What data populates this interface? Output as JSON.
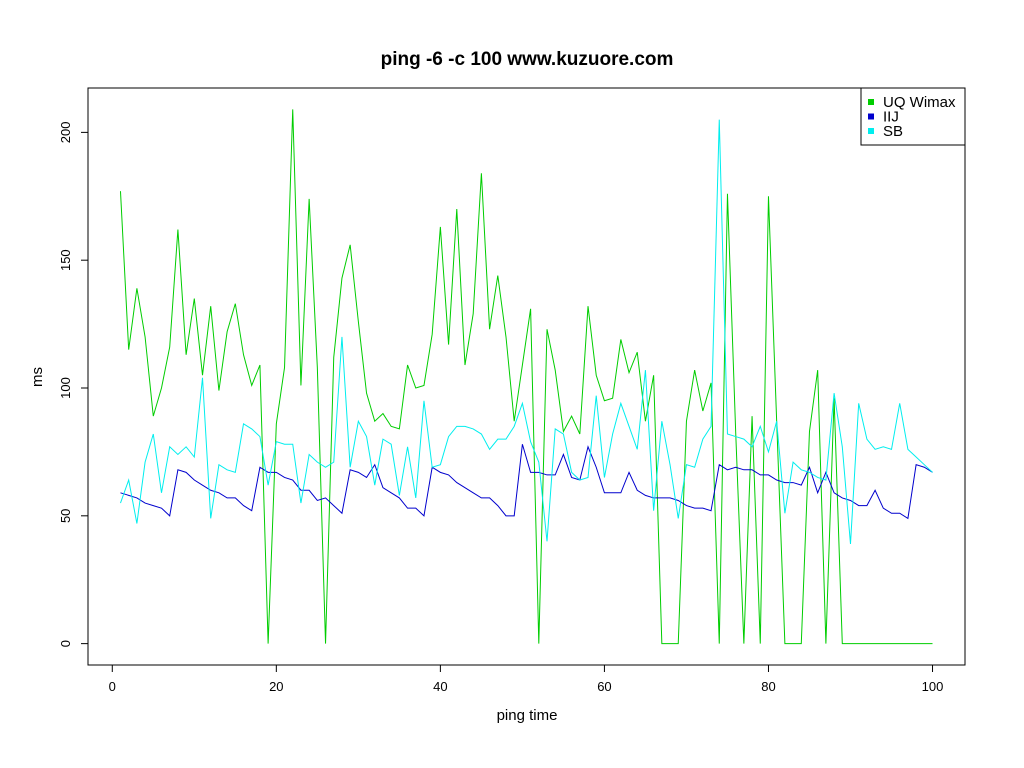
{
  "chart_data": {
    "type": "line",
    "title": "ping -6 -c 100 www.kuzuore.com",
    "xlabel": "ping time",
    "ylabel": "ms",
    "xlim": [
      -2.96,
      103.96
    ],
    "ylim": [
      -8.36,
      217.36
    ],
    "x_ticks": [
      0,
      20,
      40,
      60,
      80,
      100
    ],
    "y_ticks": [
      0,
      50,
      100,
      150,
      200
    ],
    "legend_position": "top-right",
    "grid": false,
    "x": [
      1,
      2,
      3,
      4,
      5,
      6,
      7,
      8,
      9,
      10,
      11,
      12,
      13,
      14,
      15,
      16,
      17,
      18,
      19,
      20,
      21,
      22,
      23,
      24,
      25,
      26,
      27,
      28,
      29,
      30,
      31,
      32,
      33,
      34,
      35,
      36,
      37,
      38,
      39,
      40,
      41,
      42,
      43,
      44,
      45,
      46,
      47,
      48,
      49,
      50,
      51,
      52,
      53,
      54,
      55,
      56,
      57,
      58,
      59,
      60,
      61,
      62,
      63,
      64,
      65,
      66,
      67,
      68,
      69,
      70,
      71,
      72,
      73,
      74,
      75,
      76,
      77,
      78,
      79,
      80,
      81,
      82,
      83,
      84,
      85,
      86,
      87,
      88,
      89,
      90,
      91,
      92,
      93,
      94,
      95,
      96,
      97,
      98,
      99,
      100
    ],
    "series": [
      {
        "name": "UQ Wimax",
        "color": "#00cd00",
        "values": [
          177,
          115,
          139,
          120,
          89,
          100,
          116,
          162,
          113,
          135,
          105,
          132,
          99,
          122,
          133,
          113,
          101,
          109,
          0,
          86,
          108,
          209,
          101,
          174,
          108,
          0,
          112,
          143,
          156,
          126,
          98,
          87,
          90,
          85,
          84,
          109,
          100,
          101,
          121,
          163,
          117,
          170,
          109,
          129,
          184,
          123,
          144,
          120,
          87,
          109,
          131,
          0,
          123,
          107,
          83,
          89,
          82,
          132,
          105,
          95,
          96,
          119,
          106,
          114,
          87,
          105,
          0,
          0,
          0,
          87,
          107,
          91,
          102,
          0,
          176,
          83,
          0,
          89,
          0,
          175,
          87,
          0,
          0,
          0,
          83,
          107,
          0,
          96,
          0,
          0,
          0,
          0,
          0,
          0,
          0,
          0,
          0,
          0,
          0,
          0
        ]
      },
      {
        "name": "IIJ",
        "color": "#0000cd",
        "values": [
          59,
          58,
          57,
          55,
          54,
          53,
          50,
          68,
          67,
          64,
          62,
          60,
          59,
          57,
          57,
          54,
          52,
          69,
          67,
          67,
          65,
          64,
          60,
          60,
          56,
          57,
          54,
          51,
          68,
          67,
          65,
          70,
          61,
          59,
          57,
          53,
          53,
          50,
          69,
          67,
          66,
          63,
          61,
          59,
          57,
          57,
          54,
          50,
          50,
          78,
          67,
          67,
          66,
          66,
          74,
          65,
          64,
          77,
          69,
          59,
          59,
          59,
          67,
          60,
          58,
          57,
          57,
          57,
          56,
          54,
          53,
          53,
          52,
          70,
          68,
          69,
          68,
          68,
          66,
          66,
          64,
          63,
          63,
          62,
          69,
          59,
          67,
          59,
          57,
          56,
          54,
          54,
          60,
          53,
          51,
          51,
          49,
          70,
          69,
          67
        ]
      },
      {
        "name": "SB",
        "color": "#00eeee",
        "values": [
          55,
          64,
          47,
          71,
          82,
          59,
          77,
          74,
          77,
          73,
          104,
          49,
          70,
          68,
          67,
          86,
          84,
          81,
          62,
          79,
          78,
          78,
          55,
          74,
          71,
          69,
          71,
          120,
          69,
          87,
          81,
          62,
          80,
          78,
          58,
          77,
          57,
          95,
          69,
          70,
          81,
          85,
          85,
          84,
          82,
          76,
          80,
          80,
          85,
          94,
          79,
          71,
          40,
          84,
          82,
          67,
          64,
          65,
          97,
          65,
          82,
          94,
          85,
          76,
          107,
          52,
          87,
          70,
          49,
          70,
          69,
          80,
          85,
          205,
          82,
          81,
          80,
          77,
          85,
          75,
          87,
          51,
          71,
          68,
          67,
          65,
          64,
          98,
          77,
          39,
          94,
          80,
          76,
          77,
          76,
          94,
          76,
          73,
          70,
          67
        ]
      }
    ]
  }
}
